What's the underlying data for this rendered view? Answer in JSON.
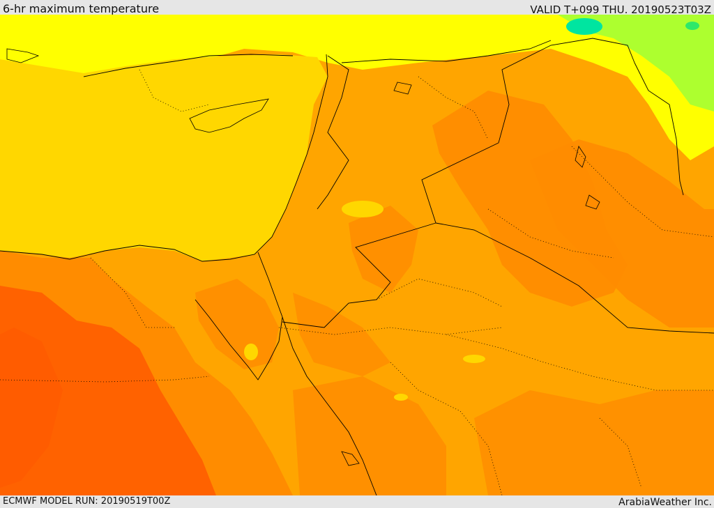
{
  "header": {
    "title": "6-hr maximum temperature",
    "valid_time": "VALID T+099 THU. 20190523T03Z"
  },
  "footer": {
    "model_run": "ECMWF MODEL RUN: 20190519T00Z",
    "credit": "ArabiaWeather Inc."
  },
  "colors": {
    "sea": "#ffd700",
    "warm_orange": "#ffa500",
    "hot_orange": "#ff8c00",
    "very_hot": "#ff5a00",
    "cool_yellow": "#ffff00",
    "cooler_green": "#adff2f",
    "coolest": "#00e5a0",
    "borders": "#000000"
  }
}
